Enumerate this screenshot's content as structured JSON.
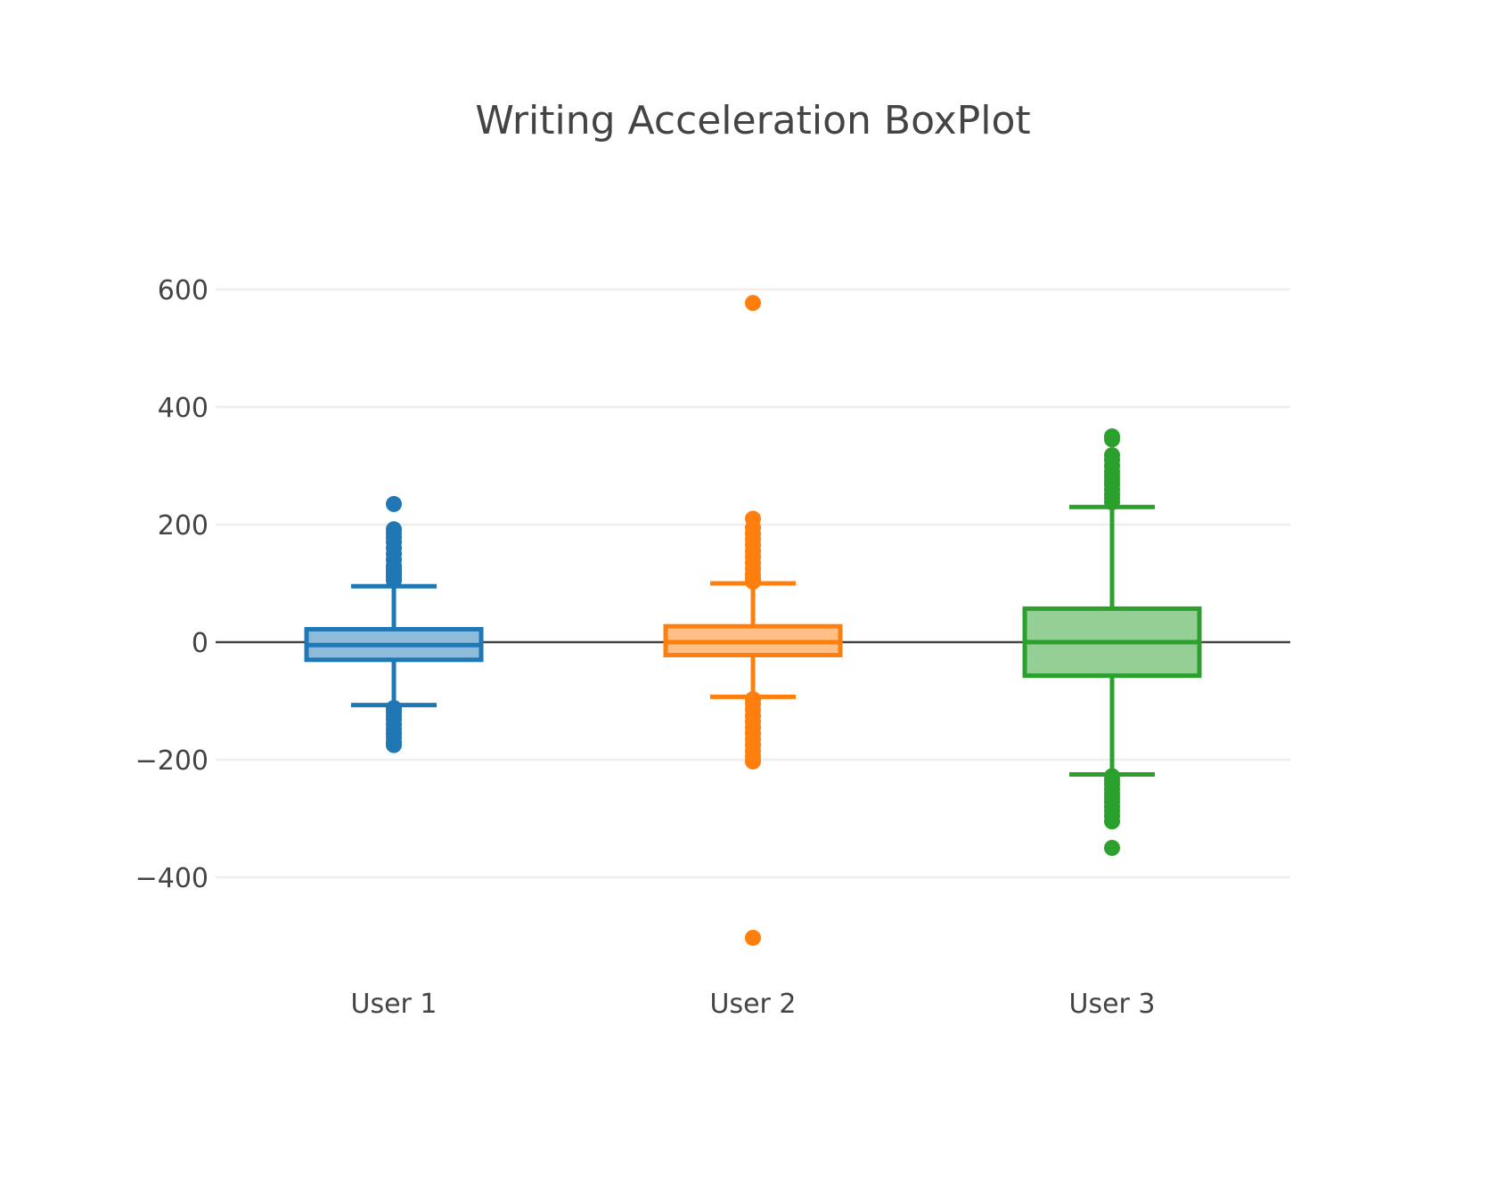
{
  "chart_data": {
    "type": "box",
    "title": "Writing Acceleration BoxPlot",
    "xlabel": "",
    "ylabel": "",
    "categories": [
      "User 1",
      "User 2",
      "User 3"
    ],
    "ylim": [
      -525,
      680
    ],
    "yticks": [
      600,
      400,
      200,
      0,
      -200,
      -400
    ],
    "ytick_labels": [
      "600",
      "400",
      "200",
      "0",
      "−200",
      "−400"
    ],
    "grid": true,
    "series": [
      {
        "category": "User 1",
        "color": "#1f77b4",
        "fill": "#8fbbd9",
        "whisker_low": -107,
        "q1": -30,
        "median": -5,
        "q3": 22,
        "whisker_high": 95,
        "outliers": [
          235,
          192,
          185,
          178,
          170,
          160,
          150,
          140,
          130,
          125,
          120,
          115,
          110,
          105,
          -112,
          -118,
          -125,
          -132,
          -140,
          -148,
          -155,
          -162,
          -170,
          -175
        ]
      },
      {
        "category": "User 2",
        "color": "#ff7f0e",
        "fill": "#ffbf87",
        "whisker_low": -93,
        "q1": -22,
        "median": 0,
        "q3": 27,
        "whisker_high": 100,
        "outliers": [
          577,
          210,
          195,
          185,
          175,
          165,
          155,
          145,
          135,
          125,
          115,
          108,
          103,
          -97,
          -105,
          -115,
          -125,
          -135,
          -145,
          -155,
          -165,
          -175,
          -185,
          -195,
          -203,
          -503
        ]
      },
      {
        "category": "User 3",
        "color": "#2ca02c",
        "fill": "#95cf95",
        "whisker_low": -225,
        "q1": -57,
        "median": 0,
        "q3": 57,
        "whisker_high": 230,
        "outliers": [
          350,
          345,
          318,
          310,
          300,
          290,
          282,
          275,
          268,
          260,
          252,
          245,
          238,
          -228,
          -235,
          -242,
          -250,
          -258,
          -265,
          -272,
          -280,
          -288,
          -296,
          -305,
          -350
        ]
      }
    ]
  }
}
